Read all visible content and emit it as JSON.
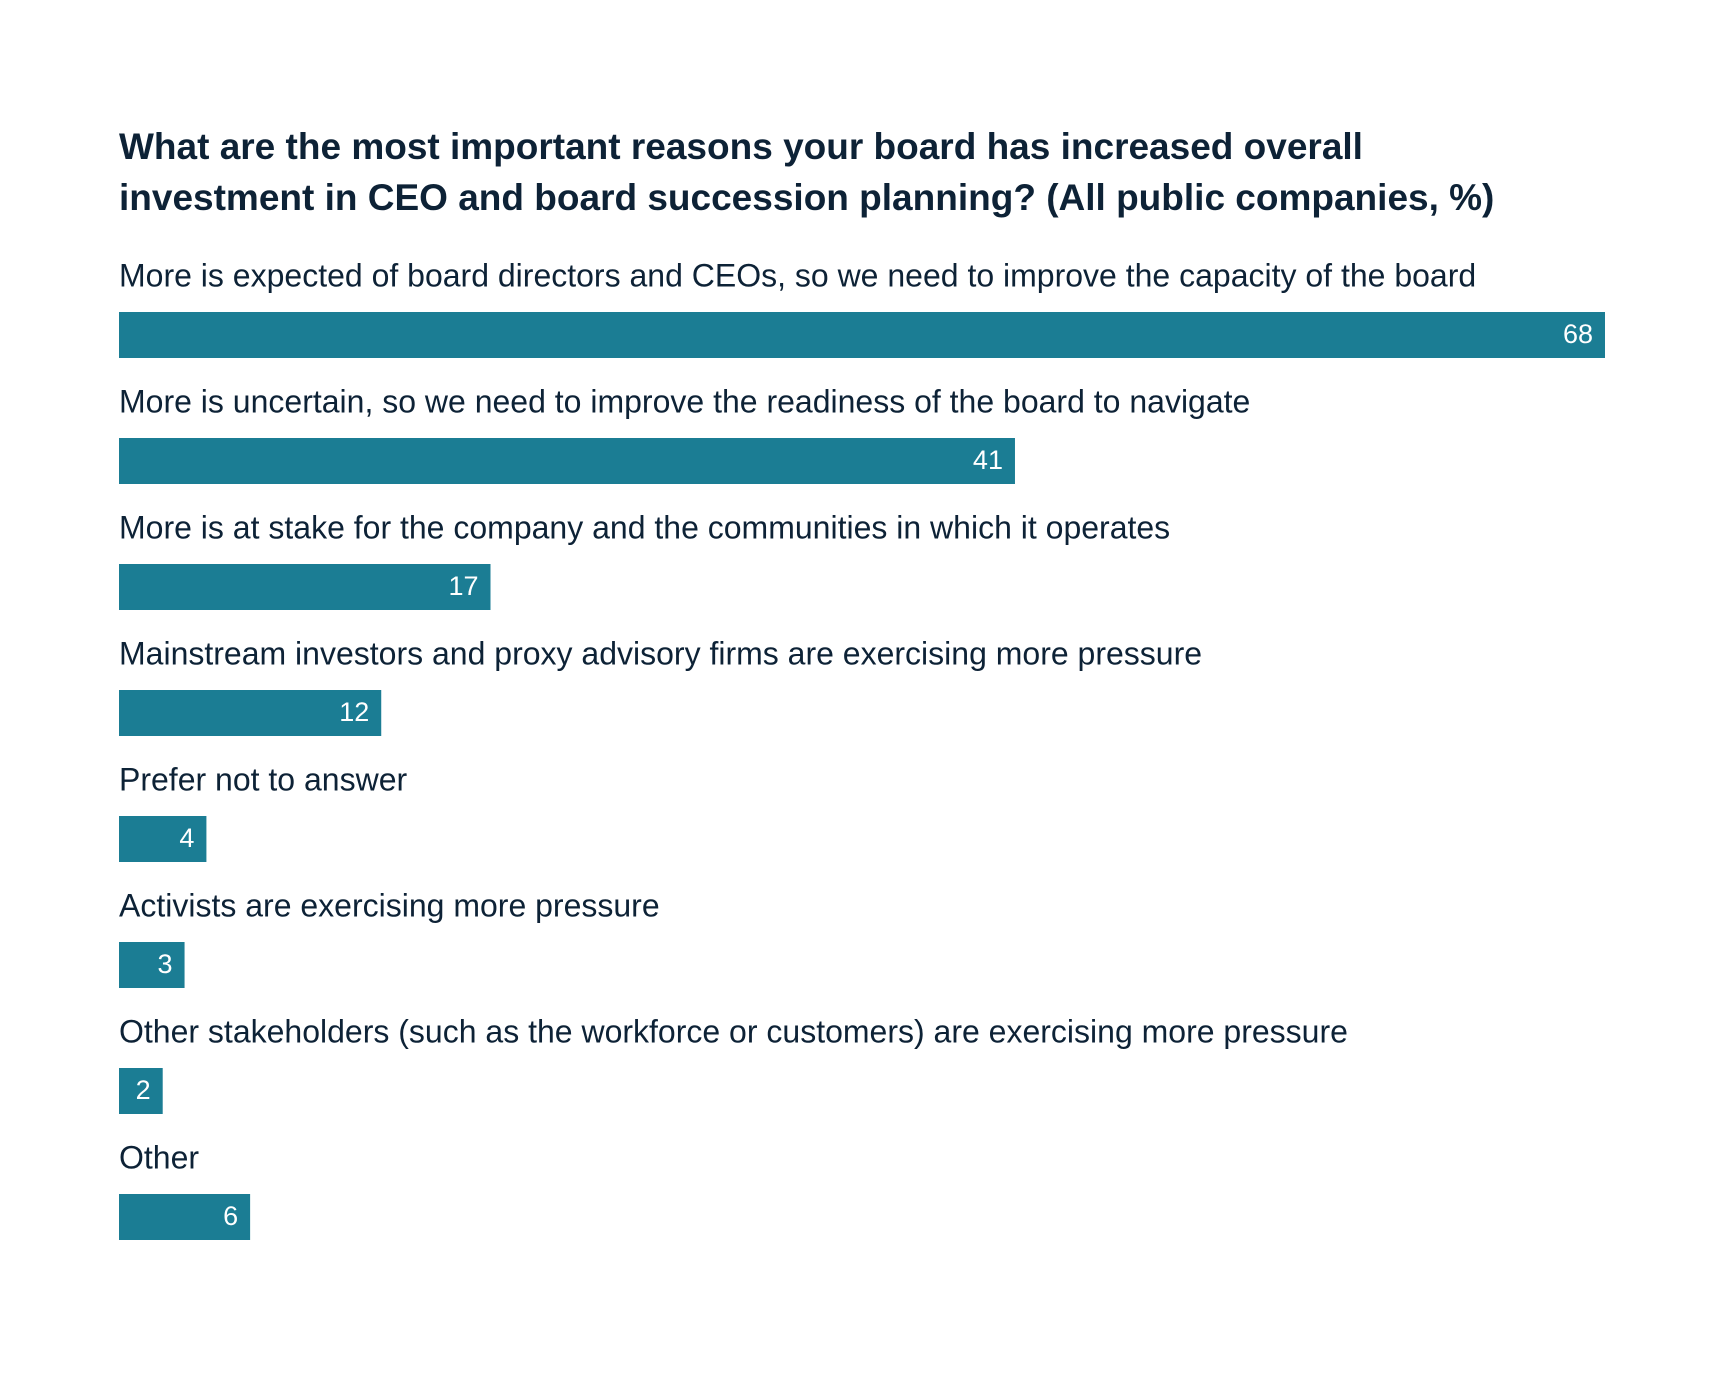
{
  "chart_data": {
    "type": "bar",
    "orientation": "horizontal",
    "title": [
      "What are the most important reasons your board has increased overall",
      "investment in CEO and board succession planning? (All public companies, %)"
    ],
    "categories": [
      "More is expected of board directors and CEOs, so we need to improve the capacity of the board",
      "More is uncertain, so we need to improve the readiness of the board to navigate",
      "More is at stake for the company and the communities in which it operates",
      "Mainstream investors and proxy advisory firms are exercising more pressure",
      "Prefer not to answer",
      "Activists are exercising more pressure",
      "Other stakeholders (such as the workforce or customers) are exercising more pressure",
      "Other"
    ],
    "values": [
      68,
      41,
      17,
      12,
      4,
      3,
      2,
      6
    ],
    "color": "#1b7d94"
  }
}
